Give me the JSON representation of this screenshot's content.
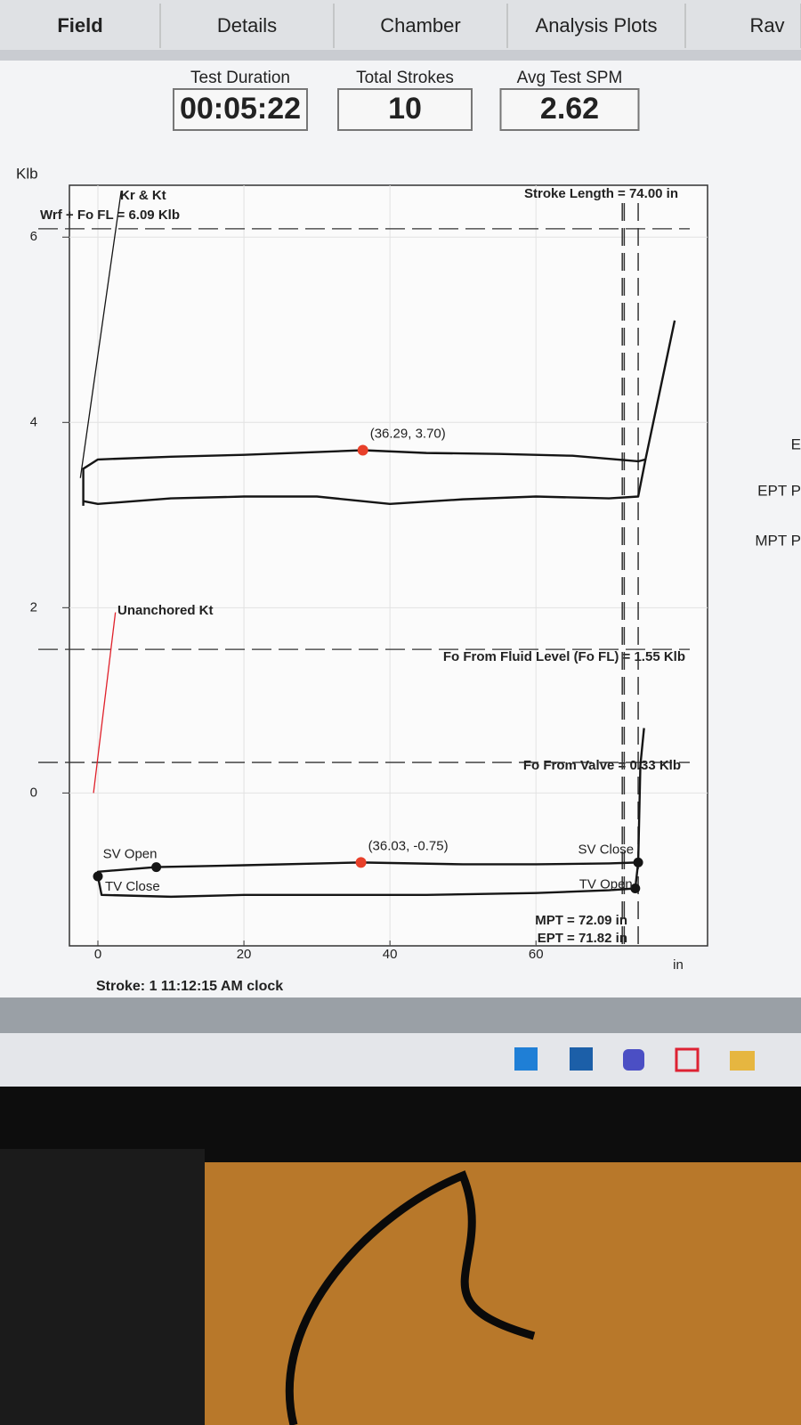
{
  "tabs": [
    "Field",
    "Details",
    "Chamber",
    "Analysis Plots",
    "Rav"
  ],
  "stats": [
    {
      "label": "Test Duration",
      "value": "00:05:22"
    },
    {
      "label": "Total Strokes",
      "value": "10"
    },
    {
      "label": "Avg Test SPM",
      "value": "2.62"
    }
  ],
  "side_labels": [
    "E",
    "EPT P",
    "MPT P"
  ],
  "chart_data": {
    "type": "line",
    "y_label": "Klb",
    "x_label": "in",
    "xlim": [
      -3.9,
      83.5
    ],
    "ylim": [
      -1.65,
      6.56
    ],
    "xticks": [
      0,
      20,
      40,
      60
    ],
    "yticks": [
      0,
      2,
      4,
      6
    ],
    "grid": true,
    "series": [
      {
        "color": "#151515",
        "x": [
          -2,
          -2,
          0,
          10,
          20,
          30,
          36.29,
          45,
          55,
          65,
          74,
          75,
          79
        ],
        "values": [
          3.1,
          3.5,
          3.6,
          3.63,
          3.65,
          3.68,
          3.7,
          3.67,
          3.66,
          3.64,
          3.58,
          3.6,
          5.1
        ]
      },
      {
        "color": "#151515",
        "x": [
          -2,
          0,
          10,
          20,
          30,
          40,
          50,
          60,
          70,
          74,
          75
        ],
        "values": [
          3.15,
          3.12,
          3.18,
          3.2,
          3.2,
          3.12,
          3.17,
          3.2,
          3.18,
          3.2,
          3.6
        ]
      },
      {
        "color": "#151515",
        "x": [
          0,
          0,
          8,
          20,
          36.03,
          50,
          60,
          70,
          74,
          74.3,
          74.8
        ],
        "values": [
          -0.9,
          -0.85,
          -0.8,
          -0.78,
          -0.75,
          -0.77,
          -0.77,
          -0.76,
          -0.75,
          0.3,
          0.7
        ]
      },
      {
        "color": "#151515",
        "x": [
          0,
          0.5,
          10,
          20,
          30,
          45,
          60,
          70,
          73.6,
          74
        ],
        "values": [
          -0.9,
          -1.1,
          -1.12,
          -1.1,
          -1.1,
          -1.1,
          -1.08,
          -1.05,
          -1.03,
          -0.75
        ]
      }
    ],
    "slope_lines": [
      {
        "label": "Kr & Kt",
        "color": "#151515",
        "x": [
          -2.4,
          3.2
        ],
        "values": [
          3.4,
          6.5
        ]
      },
      {
        "label": "Unanchored Kt",
        "color": "#e0202a",
        "x": [
          -0.6,
          2.4
        ],
        "values": [
          0,
          1.95
        ]
      }
    ],
    "reference_lines": [
      {
        "label": "Wrf + Fo FL = 6.09 Klb",
        "value": 6.09
      },
      {
        "label": "Fo From Fluid Level (Fo FL) = 1.55 Klb",
        "value": 1.55
      },
      {
        "label": "Fo From Valve = 0.33 Klb",
        "value": 0.33
      }
    ],
    "vertical_lines": [
      {
        "label": "Stroke Length = 74.00 in",
        "value": 74.0
      },
      {
        "label": "MPT = 72.09 in",
        "value": 72.09
      },
      {
        "label": "EPT = 71.82 in",
        "value": 71.82
      }
    ],
    "events": [
      {
        "label": "SV Open",
        "x": 8,
        "y": -0.8
      },
      {
        "label": "TV Close",
        "x": 0,
        "y": -0.9
      },
      {
        "label": "SV Close",
        "x": 74,
        "y": -0.75
      },
      {
        "label": "TV Open",
        "x": 73.6,
        "y": -1.03
      }
    ],
    "cursors": [
      {
        "label": "(36.29, 3.70)",
        "x": 36.29,
        "y": 3.7
      },
      {
        "label": "(36.03, -0.75)",
        "x": 36.03,
        "y": -0.75
      }
    ],
    "footer": "Stroke: 1   11:12:15 AM clock"
  }
}
